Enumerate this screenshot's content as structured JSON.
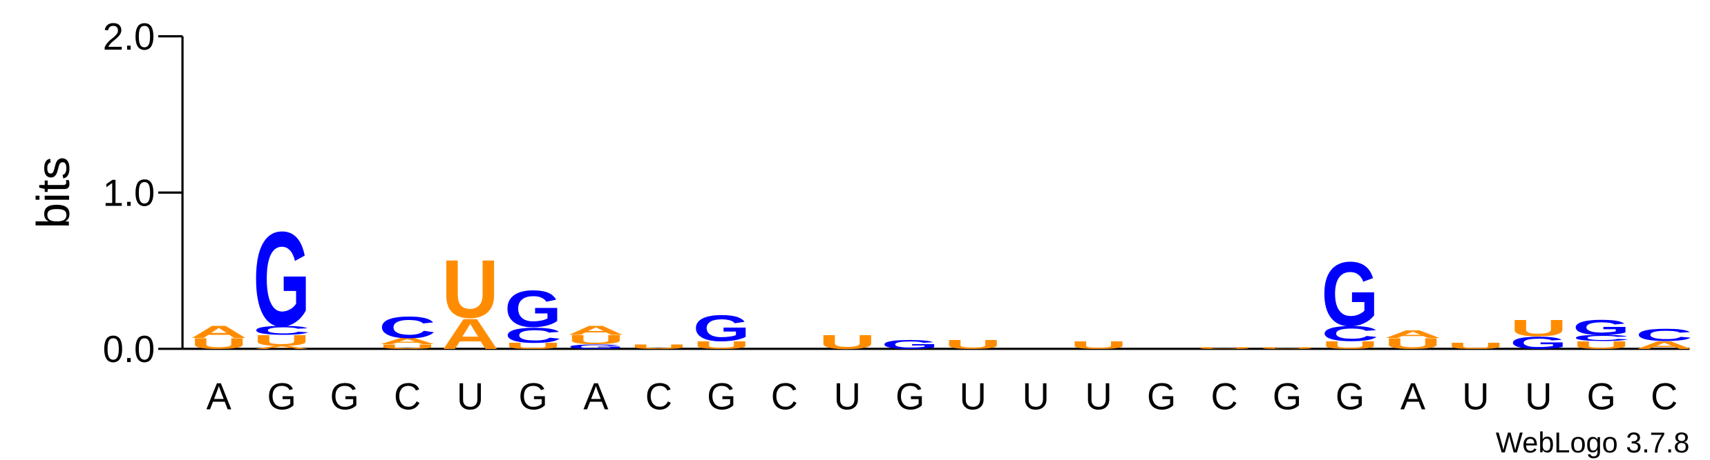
{
  "chart_data": {
    "type": "logo",
    "ylabel": "bits",
    "footer": "WebLogo 3.7.8",
    "ylim": [
      0,
      2
    ],
    "yticks": [
      {
        "value": 0,
        "label": "0.0"
      },
      {
        "value": 1,
        "label": "1.0"
      },
      {
        "value": 2,
        "label": "2.0"
      }
    ],
    "colors": {
      "A": "#ff8c00",
      "U": "#ff8c00",
      "G": "#0000ff",
      "C": "#0000ff"
    },
    "categories": [
      "A",
      "G",
      "G",
      "C",
      "U",
      "G",
      "A",
      "C",
      "G",
      "C",
      "U",
      "G",
      "U",
      "U",
      "U",
      "G",
      "C",
      "G",
      "G",
      "A",
      "U",
      "U",
      "G",
      "C"
    ],
    "stacks": [
      [
        {
          "letter": "U",
          "value": 0.07
        },
        {
          "letter": "A",
          "value": 0.08
        }
      ],
      [
        {
          "letter": "A",
          "value": 0.02
        },
        {
          "letter": "U",
          "value": 0.07
        },
        {
          "letter": "C",
          "value": 0.06
        },
        {
          "letter": "G",
          "value": 0.62
        }
      ],
      [],
      [
        {
          "letter": "U",
          "value": 0.03
        },
        {
          "letter": "A",
          "value": 0.04
        },
        {
          "letter": "C",
          "value": 0.14
        }
      ],
      [
        {
          "letter": "A",
          "value": 0.2
        },
        {
          "letter": "U",
          "value": 0.38
        }
      ],
      [
        {
          "letter": "U",
          "value": 0.04
        },
        {
          "letter": "C",
          "value": 0.1
        },
        {
          "letter": "G",
          "value": 0.24
        }
      ],
      [
        {
          "letter": "G",
          "value": 0.03
        },
        {
          "letter": "U",
          "value": 0.06
        },
        {
          "letter": "A",
          "value": 0.06
        }
      ],
      [
        {
          "letter": "U",
          "value": 0.03
        }
      ],
      [
        {
          "letter": "U",
          "value": 0.05
        },
        {
          "letter": "G",
          "value": 0.17
        }
      ],
      [],
      [
        {
          "letter": "U",
          "value": 0.09
        }
      ],
      [
        {
          "letter": "G",
          "value": 0.06
        }
      ],
      [
        {
          "letter": "U",
          "value": 0.06
        }
      ],
      [],
      [
        {
          "letter": "U",
          "value": 0.05
        }
      ],
      [],
      [
        {
          "letter": "U",
          "value": 0.01
        }
      ],
      [
        {
          "letter": "U",
          "value": 0.01
        }
      ],
      [
        {
          "letter": "U",
          "value": 0.05
        },
        {
          "letter": "C",
          "value": 0.1
        },
        {
          "letter": "G",
          "value": 0.42
        }
      ],
      [
        {
          "letter": "U",
          "value": 0.07
        },
        {
          "letter": "A",
          "value": 0.05
        }
      ],
      [
        {
          "letter": "U",
          "value": 0.04
        }
      ],
      [
        {
          "letter": "G",
          "value": 0.08
        },
        {
          "letter": "U",
          "value": 0.11
        }
      ],
      [
        {
          "letter": "U",
          "value": 0.05
        },
        {
          "letter": "C",
          "value": 0.04
        },
        {
          "letter": "G",
          "value": 0.1
        }
      ],
      [
        {
          "letter": "A",
          "value": 0.05
        },
        {
          "letter": "C",
          "value": 0.08
        }
      ]
    ]
  }
}
